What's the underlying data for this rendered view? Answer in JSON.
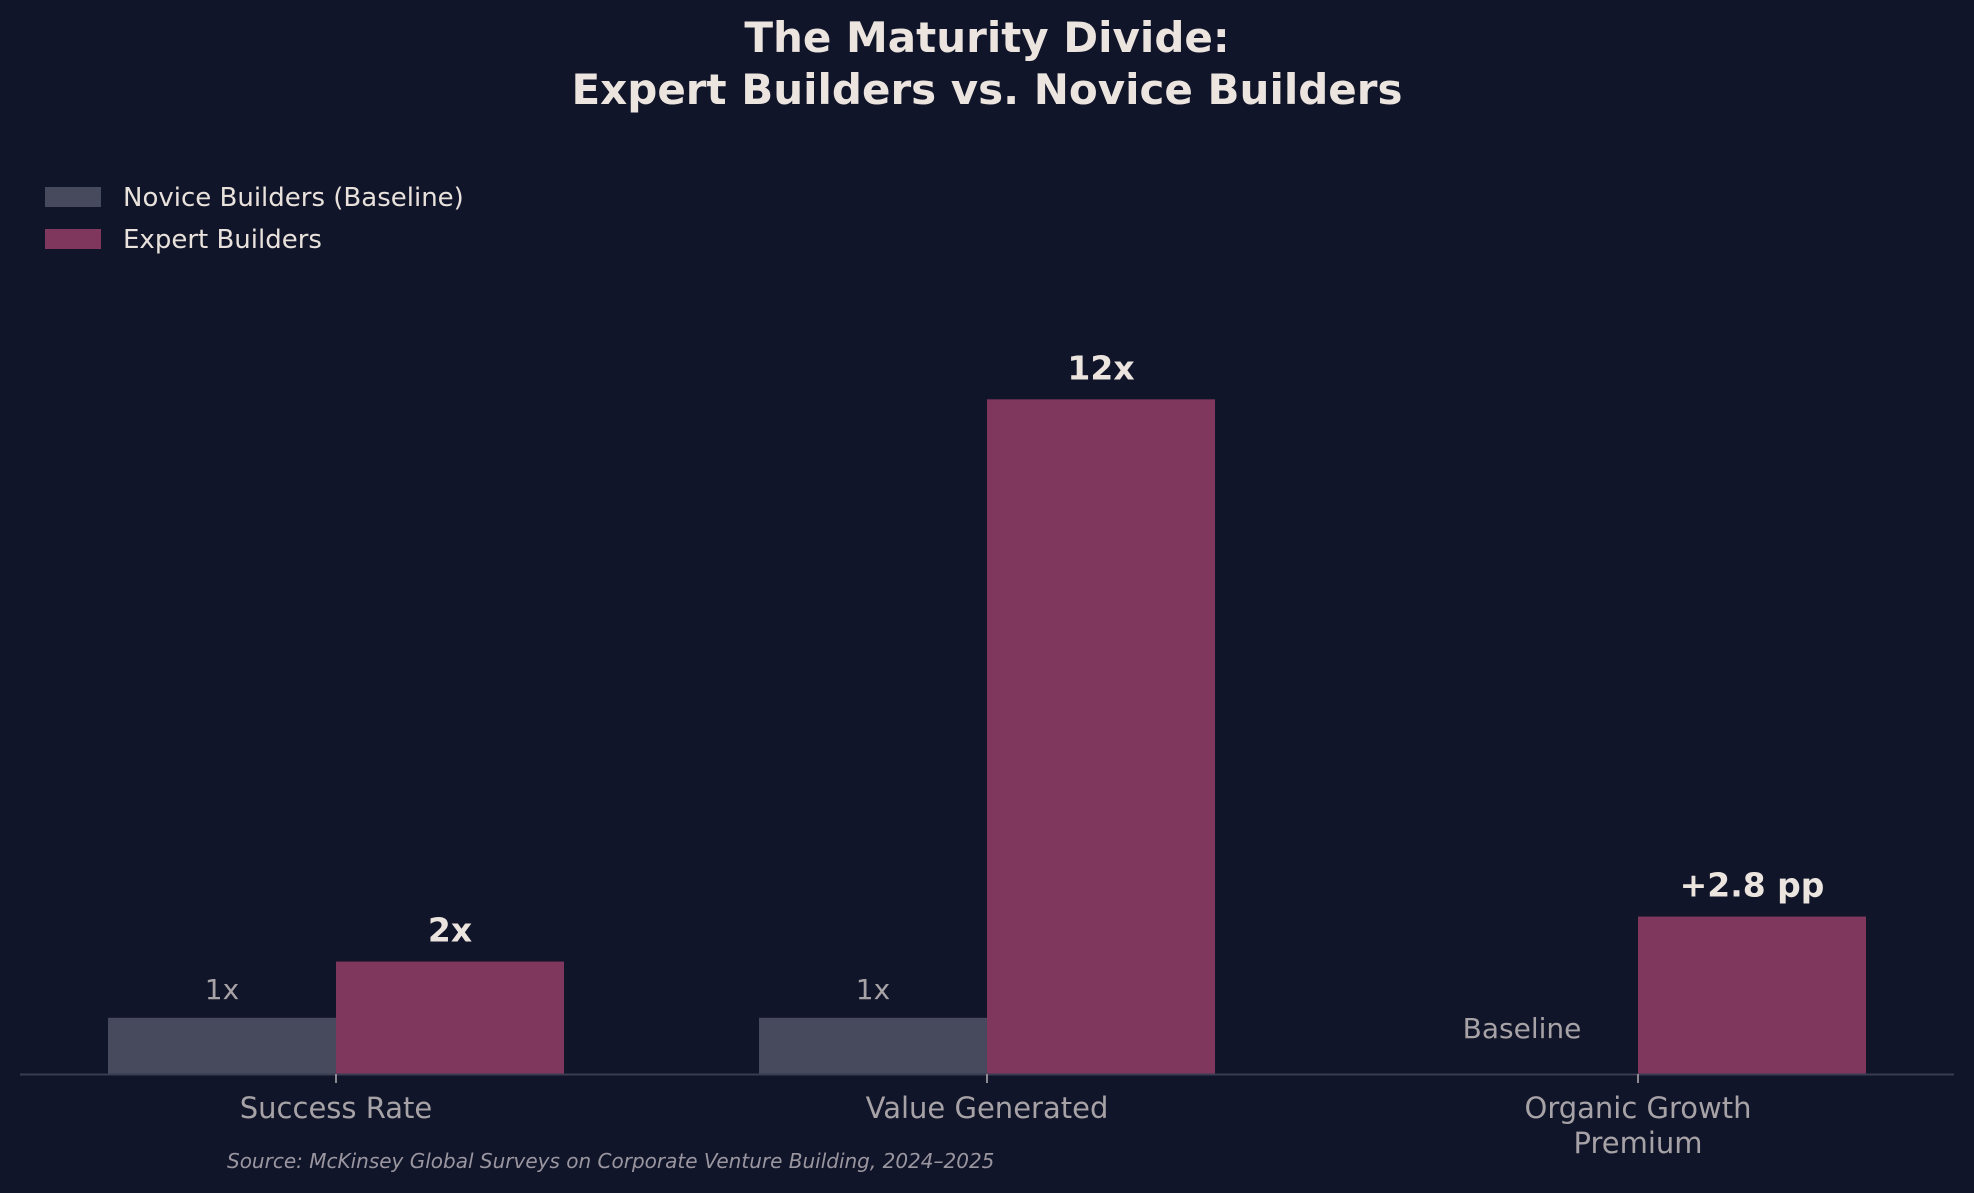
{
  "chart_data": {
    "type": "bar",
    "title": [
      "The Maturity Divide:",
      "Expert Builders vs. Novice Builders"
    ],
    "categories": [
      [
        "Success Rate"
      ],
      [
        "Value Generated"
      ],
      [
        "Organic Growth",
        "Premium"
      ]
    ],
    "series": [
      {
        "name": "Novice Builders (Baseline)",
        "color": "#474a5c",
        "values": [
          1,
          1,
          0
        ],
        "labels": [
          "1x",
          "1x",
          "Baseline"
        ]
      },
      {
        "name": "Expert Builders",
        "color": "#7f375d",
        "values": [
          2,
          12,
          2.8
        ],
        "labels": [
          "2x",
          "12x",
          "+2.8 pp"
        ]
      }
    ],
    "ylim": [
      0,
      14.3
    ],
    "grid": false,
    "legend_position": "top-left",
    "source": "Source: McKinsey Global Surveys on Corporate Venture Building, 2024–2025"
  }
}
